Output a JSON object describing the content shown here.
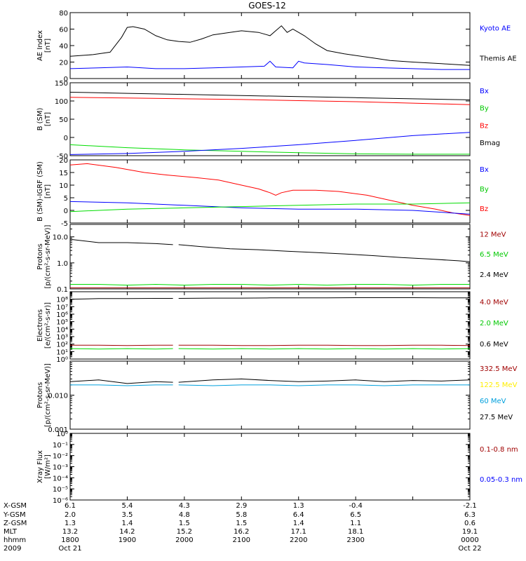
{
  "title": "GOES-12",
  "colors": {
    "black": "#000000",
    "blue": "#0000ff",
    "red": "#ff0000",
    "green": "#00dd00",
    "darkred": "#a00000",
    "cyan": "#00a0dd",
    "yellow": "#ffee00",
    "green_legend": "#00c800"
  },
  "chart_data": [
    {
      "type": "line",
      "panel": "ae",
      "ylabel": [
        "AE Index",
        "[nT]"
      ],
      "ylim": [
        0,
        80
      ],
      "yscale": "linear",
      "yticks": [
        0,
        20,
        40,
        60,
        80
      ],
      "ytick_labels": [
        "0",
        "20",
        "40",
        "60",
        "80"
      ],
      "xlim_hours": [
        18,
        25
      ],
      "legend": [
        {
          "text": "Kyoto AE",
          "color": "#0000ff"
        },
        {
          "text": "Themis AE",
          "color": "#000000"
        }
      ],
      "series": [
        {
          "color": "#000000",
          "x": [
            18.0,
            18.4,
            18.7,
            18.9,
            19.0,
            19.1,
            19.3,
            19.5,
            19.7,
            19.9,
            20.1,
            20.3,
            20.5,
            20.7,
            21.0,
            21.3,
            21.5,
            21.6,
            21.7,
            21.8,
            21.9,
            22.1,
            22.3,
            22.5,
            22.8,
            23.0,
            23.3,
            23.6,
            24.0,
            24.5,
            25.0
          ],
          "y": [
            27,
            29,
            32,
            50,
            62,
            63,
            60,
            52,
            47,
            45,
            44,
            48,
            53,
            55,
            58,
            56,
            52,
            58,
            64,
            56,
            60,
            52,
            42,
            34,
            30,
            28,
            25,
            22,
            20,
            18,
            16
          ]
        },
        {
          "color": "#0000ff",
          "x": [
            18.0,
            18.5,
            19.0,
            19.5,
            20.0,
            20.5,
            21.0,
            21.4,
            21.5,
            21.6,
            21.9,
            22.0,
            22.1,
            22.5,
            23.0,
            23.5,
            24.0,
            24.5,
            25.0
          ],
          "y": [
            12,
            13,
            14,
            12,
            12,
            13,
            14,
            15,
            21,
            14,
            13,
            21,
            19,
            17,
            14,
            13,
            12,
            11,
            11
          ]
        }
      ]
    },
    {
      "type": "line",
      "panel": "bsm",
      "ylabel": [
        "B (SM)",
        "[nT]"
      ],
      "ylim": [
        -50,
        150
      ],
      "yscale": "linear",
      "yticks": [
        -50,
        0,
        50,
        100,
        150
      ],
      "ytick_labels": [
        "-50",
        "0",
        "50",
        "100",
        "150"
      ],
      "xlim_hours": [
        18,
        25
      ],
      "legend": [
        {
          "text": "Bx",
          "color": "#0000ff"
        },
        {
          "text": "By",
          "color": "#00c800"
        },
        {
          "text": "Bz",
          "color": "#ff0000"
        },
        {
          "text": "Bmag",
          "color": "#000000"
        }
      ],
      "series": [
        {
          "color": "#000000",
          "x": [
            18,
            19,
            20,
            21,
            22,
            23,
            24,
            25
          ],
          "y": [
            124,
            121,
            118,
            115,
            112,
            109,
            106,
            103
          ]
        },
        {
          "color": "#ff0000",
          "x": [
            18,
            19,
            20,
            21,
            22,
            23,
            24,
            25
          ],
          "y": [
            110,
            108,
            106,
            104,
            101,
            98,
            94,
            90
          ]
        },
        {
          "color": "#00dd00",
          "x": [
            18,
            19,
            20,
            21,
            22,
            23,
            24,
            25
          ],
          "y": [
            -20,
            -28,
            -34,
            -38,
            -42,
            -45,
            -46,
            -46
          ]
        },
        {
          "color": "#0000ff",
          "x": [
            18,
            19,
            20,
            21,
            22,
            23,
            24,
            25
          ],
          "y": [
            -47,
            -44,
            -38,
            -30,
            -20,
            -8,
            5,
            14
          ]
        }
      ]
    },
    {
      "type": "line",
      "panel": "bsm-igrf",
      "ylabel": [
        "B (SM)-IGRF (SM)",
        "[nT]"
      ],
      "ylim": [
        -5,
        20
      ],
      "yscale": "linear",
      "yticks": [
        -5,
        0,
        5,
        10,
        15,
        20
      ],
      "ytick_labels": [
        "-5",
        "0",
        "5",
        "10",
        "15",
        "20"
      ],
      "xlim_hours": [
        18,
        25
      ],
      "legend": [
        {
          "text": "Bx",
          "color": "#0000ff"
        },
        {
          "text": "By",
          "color": "#00c800"
        },
        {
          "text": "Bz",
          "color": "#ff0000"
        }
      ],
      "series": [
        {
          "color": "#ff0000",
          "x": [
            18.0,
            18.3,
            18.8,
            19.3,
            19.7,
            20.2,
            20.6,
            21.0,
            21.3,
            21.5,
            21.6,
            21.7,
            21.9,
            22.3,
            22.7,
            23.2,
            23.6,
            24.0,
            24.4,
            24.7,
            25.0
          ],
          "y": [
            18,
            18.5,
            17,
            15,
            14,
            13,
            12,
            10,
            8.5,
            7,
            6,
            7,
            8,
            8,
            7.5,
            6,
            4,
            2,
            0.5,
            -1,
            -2
          ]
        },
        {
          "color": "#0000ff",
          "x": [
            18,
            19,
            20,
            21,
            22,
            23,
            24,
            25
          ],
          "y": [
            3.5,
            3,
            2,
            1,
            0.5,
            0.5,
            0,
            -1.5
          ]
        },
        {
          "color": "#00dd00",
          "x": [
            18,
            19,
            20,
            21,
            22,
            23,
            24,
            25
          ],
          "y": [
            -0.5,
            0.5,
            1,
            1.5,
            2,
            2.5,
            2.5,
            3
          ]
        }
      ]
    },
    {
      "type": "line",
      "panel": "protons-low",
      "ylabel": [
        "Protons",
        "[p/(cm²-s-sr-MeV)]"
      ],
      "ylim": [
        0.1,
        30
      ],
      "yscale": "log",
      "yticks": [
        0.1,
        1,
        10
      ],
      "ytick_labels": [
        "0.1",
        "1.0",
        "10.0"
      ],
      "xlim_hours": [
        18,
        25
      ],
      "legend": [
        {
          "text": "12 MeV",
          "color": "#a00000"
        },
        {
          "text": "6.5 MeV",
          "color": "#00c800"
        },
        {
          "text": "2.4 MeV",
          "color": "#000000"
        }
      ],
      "series": [
        {
          "color": "#000000",
          "x": [
            18.0,
            18.5,
            19.0,
            19.5,
            19.8
          ],
          "y": [
            8,
            6,
            6,
            5.5,
            5
          ]
        },
        {
          "color": "#000000",
          "x": [
            19.9,
            20.3,
            20.8,
            21.3,
            21.8,
            22.3,
            22.8,
            23.3,
            23.8,
            24.3,
            24.8,
            25.0
          ],
          "y": [
            5,
            4.2,
            3.5,
            3.2,
            2.8,
            2.5,
            2.2,
            1.9,
            1.6,
            1.4,
            1.2,
            1.1
          ]
        },
        {
          "color": "#00dd00",
          "x": [
            18.0,
            18.5,
            19.0,
            19.5,
            20.0,
            20.5,
            21.0,
            21.5,
            22.0,
            22.5,
            23.0,
            23.5,
            24.0,
            24.5,
            25.0
          ],
          "y": [
            0.15,
            0.15,
            0.14,
            0.15,
            0.14,
            0.15,
            0.15,
            0.14,
            0.15,
            0.14,
            0.15,
            0.15,
            0.14,
            0.15,
            0.15
          ]
        },
        {
          "color": "#a00000",
          "x": [
            18.0,
            18.5,
            19.0,
            19.5,
            20.0,
            20.5,
            21.0,
            21.5,
            22.0,
            22.5,
            23.0,
            23.5,
            24.0,
            24.5,
            25.0
          ],
          "y": [
            0.11,
            0.11,
            0.11,
            0.11,
            0.11,
            0.11,
            0.11,
            0.11,
            0.11,
            0.11,
            0.11,
            0.11,
            0.11,
            0.11,
            0.11
          ]
        }
      ]
    },
    {
      "type": "line",
      "panel": "electrons",
      "ylabel": [
        "Electrons",
        "[e/(cm²-s-sr)]"
      ],
      "ylim": [
        1,
        1000000000
      ],
      "yscale": "log",
      "yticks": [
        1,
        10,
        100,
        1000,
        10000,
        100000,
        1000000,
        10000000,
        100000000
      ],
      "ytick_labels": [
        "10⁰",
        "10¹",
        "10²",
        "10³",
        "10⁴",
        "10⁵",
        "10⁶",
        "10⁷",
        "10⁸"
      ],
      "xlim_hours": [
        18,
        25
      ],
      "legend": [
        {
          "text": "4.0 MeV",
          "color": "#a00000"
        },
        {
          "text": "2.0 MeV",
          "color": "#00c800"
        },
        {
          "text": "0.6 MeV",
          "color": "#000000"
        }
      ],
      "series": [
        {
          "color": "#000000",
          "x": [
            18.0,
            18.5,
            19.0,
            19.5,
            19.8
          ],
          "y": [
            100000000,
            120000000,
            120000000,
            130000000,
            130000000
          ]
        },
        {
          "color": "#000000",
          "x": [
            19.9,
            20.5,
            21.0,
            21.5,
            22.0,
            22.5,
            23.0,
            23.5,
            24.0,
            24.5,
            25.0
          ],
          "y": [
            130000000,
            140000000,
            140000000,
            150000000,
            150000000,
            150000000,
            160000000,
            160000000,
            160000000,
            150000000,
            150000000
          ]
        },
        {
          "color": "#a00000",
          "x": [
            18.0,
            18.5,
            19.0,
            19.5,
            19.8
          ],
          "y": [
            70,
            70,
            65,
            70,
            70
          ]
        },
        {
          "color": "#a00000",
          "x": [
            19.9,
            20.5,
            21.0,
            21.5,
            22.0,
            22.5,
            23.0,
            23.5,
            24.0,
            24.5,
            25.0
          ],
          "y": [
            70,
            70,
            65,
            65,
            70,
            70,
            65,
            65,
            70,
            70,
            65
          ]
        },
        {
          "color": "#00dd00",
          "x": [
            18.0,
            18.5,
            19.0,
            19.5,
            19.8
          ],
          "y": [
            25,
            22,
            25,
            22,
            25
          ]
        },
        {
          "color": "#00dd00",
          "x": [
            19.9,
            20.5,
            21.0,
            21.5,
            22.0,
            22.5,
            23.0,
            23.5,
            24.0,
            24.5,
            25.0
          ],
          "y": [
            25,
            22,
            25,
            22,
            25,
            22,
            25,
            22,
            25,
            22,
            25
          ]
        }
      ]
    },
    {
      "type": "line",
      "panel": "protons-high",
      "ylabel": [
        "Protons",
        "[p/(cm²-s-sr-MeV)]"
      ],
      "ylim": [
        0.001,
        0.1
      ],
      "yscale": "log",
      "yticks": [
        0.001,
        0.01
      ],
      "ytick_labels": [
        "0.001",
        "0.010"
      ],
      "xlim_hours": [
        18,
        25
      ],
      "legend": [
        {
          "text": "332.5 MeV",
          "color": "#a00000"
        },
        {
          "text": "122.5 MeV",
          "color": "#ffee00"
        },
        {
          "text": "60 MeV",
          "color": "#00a0dd"
        },
        {
          "text": "27.5 MeV",
          "color": "#000000"
        }
      ],
      "series": [
        {
          "color": "#000000",
          "x": [
            18.0,
            18.5,
            19.0,
            19.5,
            19.8
          ],
          "y": [
            0.025,
            0.028,
            0.022,
            0.025,
            0.024
          ]
        },
        {
          "color": "#000000",
          "x": [
            19.9,
            20.5,
            21.0,
            21.5,
            22.0,
            22.5,
            23.0,
            23.5,
            24.0,
            24.5,
            25.0
          ],
          "y": [
            0.024,
            0.028,
            0.03,
            0.027,
            0.025,
            0.026,
            0.028,
            0.025,
            0.027,
            0.026,
            0.028
          ]
        },
        {
          "color": "#00a0dd",
          "x": [
            18.0,
            18.5,
            19.0,
            19.5,
            19.8
          ],
          "y": [
            0.02,
            0.02,
            0.019,
            0.02,
            0.02
          ]
        },
        {
          "color": "#00a0dd",
          "x": [
            19.9,
            20.5,
            21.0,
            21.5,
            22.0,
            22.5,
            23.0,
            23.5,
            24.0,
            24.5,
            25.0
          ],
          "y": [
            0.02,
            0.019,
            0.02,
            0.02,
            0.019,
            0.02,
            0.02,
            0.019,
            0.02,
            0.02,
            0.02
          ]
        }
      ]
    },
    {
      "type": "line",
      "panel": "xray",
      "ylabel": [
        "Xray Flux",
        "[W/m²]"
      ],
      "ylim": [
        1e-06,
        1
      ],
      "yscale": "log",
      "yticks": [
        1e-06,
        1e-05,
        0.0001,
        0.001,
        0.01,
        0.1,
        1
      ],
      "ytick_labels": [
        "10⁻⁶",
        "10⁻⁵",
        "10⁻⁴",
        "10⁻³",
        "10⁻²",
        "10⁻¹",
        "10⁰"
      ],
      "xlim_hours": [
        18,
        25
      ],
      "legend": [
        {
          "text": "0.1-0.8 nm",
          "color": "#a00000"
        },
        {
          "text": "0.05-0.3 nm",
          "color": "#0000ff"
        }
      ],
      "series": []
    }
  ],
  "ephemeris": {
    "row_labels": [
      "X-GSM",
      "Y-GSM",
      "Z-GSM",
      "MLT",
      "hhmm",
      "2009"
    ],
    "columns": [
      {
        "hour": 18,
        "values": [
          "6.1",
          "2.0",
          "1.3",
          "13.2",
          "1800",
          "Oct 21"
        ]
      },
      {
        "hour": 19,
        "values": [
          "5.4",
          "3.5",
          "1.4",
          "14.2",
          "1900",
          ""
        ]
      },
      {
        "hour": 20,
        "values": [
          "4.3",
          "4.8",
          "1.5",
          "15.2",
          "2000",
          ""
        ]
      },
      {
        "hour": 21,
        "values": [
          "2.9",
          "5.8",
          "1.5",
          "16.2",
          "2100",
          ""
        ]
      },
      {
        "hour": 22,
        "values": [
          "1.3",
          "6.4",
          "1.4",
          "17.1",
          "2200",
          ""
        ]
      },
      {
        "hour": 23,
        "values": [
          "-0.4",
          "6.5",
          "1.1",
          "18.1",
          "2300",
          ""
        ]
      },
      {
        "hour": 25,
        "values": [
          "-2.1",
          "6.3",
          "0.6",
          "19.1",
          "0000",
          "Oct 22"
        ]
      }
    ]
  }
}
